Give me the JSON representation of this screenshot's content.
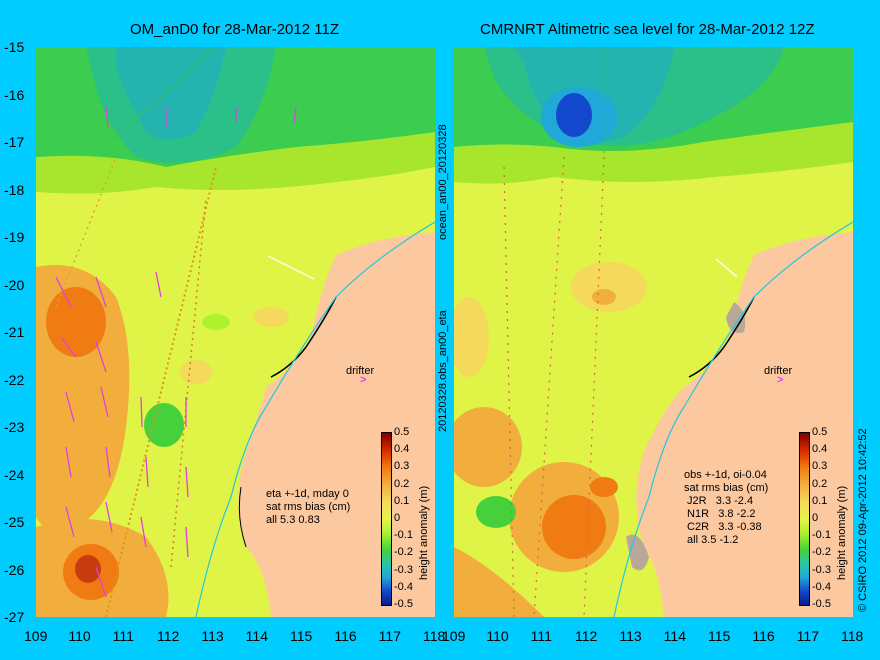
{
  "left": {
    "title": "OM_anD0 for 28-Mar-2012 11Z",
    "side_label": "ocean_an00_20120328",
    "annotation": "eta +-1d, mday 0\nsat rms bias (cm)\nall 5.3 0.83"
  },
  "right": {
    "title": "CMRNRT Altimetric sea level  for 28-Mar-2012 12Z",
    "side_label": "20120328.obs_an00_eta",
    "annotation": "obs +-1d, oi-0.04\nsat rms bias (cm)\n J2R   3.3 -2.4\n N1R   3.8 -2.2\n C2R   3.3 -0.38\n all 3.5 -1.2"
  },
  "credit": "© CSIRO 2012  09-Apr-2012 10:42:52",
  "drifter_label": "drifter",
  "colorbar": {
    "label": "height anomaly (m)",
    "ticks": [
      "0.5",
      "0.4",
      "0.3",
      "0.2",
      "0.1",
      "0",
      "-0.1",
      "-0.2",
      "-0.3",
      "-0.4",
      "-0.5"
    ]
  },
  "axes": {
    "lat_ticks": [
      "-15",
      "-16",
      "-17",
      "-18",
      "-19",
      "-20",
      "-21",
      "-22",
      "-23",
      "-24",
      "-25",
      "-26",
      "-27"
    ],
    "lon_ticks": [
      "109",
      "110",
      "111",
      "112",
      "113",
      "114",
      "115",
      "116",
      "117",
      "118"
    ],
    "lon_range": [
      109,
      118
    ],
    "lat_range": [
      -27,
      -15
    ]
  },
  "colors": {
    "land": "#fcc8a0",
    "background": "#00ccff",
    "vector": "#e040e0"
  }
}
